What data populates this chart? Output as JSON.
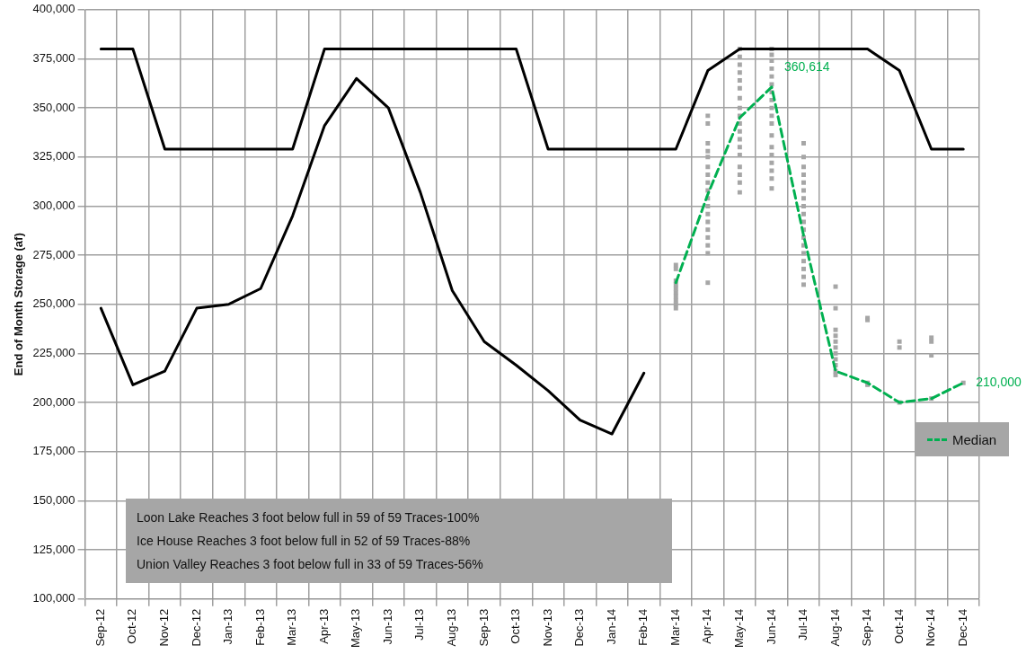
{
  "chart_data": {
    "type": "line",
    "ylabel": "End of Month Storage (af)",
    "categories": [
      "Sep-12",
      "Oct-12",
      "Nov-12",
      "Dec-12",
      "Jan-13",
      "Feb-13",
      "Mar-13",
      "Apr-13",
      "May-13",
      "Jun-13",
      "Jul-13",
      "Aug-13",
      "Sep-13",
      "Oct-13",
      "Nov-13",
      "Dec-13",
      "Jan-14",
      "Feb-14",
      "Mar-14",
      "Apr-14",
      "May-14",
      "Jun-14",
      "Jul-14",
      "Aug-14",
      "Sep-14",
      "Oct-14",
      "Nov-14",
      "Dec-14"
    ],
    "series": [
      {
        "color": "#000000",
        "values": [
          380000,
          380000,
          329000,
          329000,
          329000,
          329000,
          329000,
          380000,
          380000,
          380000,
          380000,
          380000,
          380000,
          380000,
          329000,
          329000,
          329000,
          329000,
          329000,
          369000,
          380000,
          380000,
          380000,
          380000,
          380000,
          369000,
          329000,
          329000
        ]
      },
      {
        "color": "#000000",
        "values": [
          248000,
          209000,
          216000,
          248000,
          250000,
          258000,
          295000,
          341000,
          365000,
          350000,
          307000,
          257000,
          231000,
          219000,
          206000,
          191000,
          184000,
          215000,
          null,
          null,
          null,
          null,
          null,
          null,
          null,
          null,
          null,
          null
        ]
      },
      {
        "type": "scatter",
        "color": "#a6a6a6",
        "x": [
          "Mar-14",
          "Mar-14",
          "Mar-14",
          "Mar-14",
          "Mar-14",
          "Mar-14",
          "Mar-14",
          "Mar-14",
          "Mar-14",
          "Mar-14",
          "Apr-14",
          "Apr-14",
          "Apr-14",
          "Apr-14",
          "Apr-14",
          "Apr-14",
          "Apr-14",
          "Apr-14",
          "Apr-14",
          "Apr-14",
          "Apr-14",
          "Apr-14",
          "Apr-14",
          "Apr-14",
          "Apr-14",
          "Apr-14",
          "Apr-14",
          "Apr-14",
          "May-14",
          "May-14",
          "May-14",
          "May-14",
          "May-14",
          "May-14",
          "May-14",
          "May-14",
          "May-14",
          "May-14",
          "May-14",
          "May-14",
          "May-14",
          "May-14",
          "May-14",
          "May-14",
          "May-14",
          "May-14",
          "Jun-14",
          "Jun-14",
          "Jun-14",
          "Jun-14",
          "Jun-14",
          "Jun-14",
          "Jun-14",
          "Jun-14",
          "Jun-14",
          "Jun-14",
          "Jun-14",
          "Jun-14",
          "Jun-14",
          "Jun-14",
          "Jun-14",
          "Jun-14",
          "Jun-14",
          "Jun-14",
          "Jul-14",
          "Jul-14",
          "Jul-14",
          "Jul-14",
          "Jul-14",
          "Jul-14",
          "Jul-14",
          "Jul-14",
          "Jul-14",
          "Jul-14",
          "Jul-14",
          "Jul-14",
          "Jul-14",
          "Jul-14",
          "Jul-14",
          "Jul-14",
          "Jul-14",
          "Jul-14",
          "Aug-14",
          "Aug-14",
          "Aug-14",
          "Aug-14",
          "Aug-14",
          "Aug-14",
          "Aug-14",
          "Aug-14",
          "Aug-14",
          "Aug-14",
          "Aug-14",
          "Sep-14",
          "Sep-14",
          "Sep-14",
          "Sep-14",
          "Oct-14",
          "Oct-14",
          "Oct-14",
          "Nov-14",
          "Nov-14",
          "Nov-14",
          "Nov-14",
          "Dec-14"
        ],
        "values": [
          270000,
          268000,
          262000,
          260000,
          258000,
          256000,
          254000,
          252000,
          250000,
          248000,
          346000,
          342000,
          332000,
          328000,
          325000,
          320000,
          316000,
          312000,
          308000,
          304000,
          300000,
          296000,
          292000,
          288000,
          284000,
          280000,
          276000,
          261000,
          380000,
          376000,
          372000,
          368000,
          364000,
          360000,
          355000,
          350000,
          346000,
          342000,
          338000,
          334000,
          330000,
          326000,
          320000,
          316000,
          312000,
          307000,
          380000,
          377000,
          374000,
          370000,
          366000,
          362000,
          358000,
          354000,
          350000,
          346000,
          342000,
          336000,
          330000,
          326000,
          322000,
          318000,
          314000,
          309000,
          332000,
          325000,
          320000,
          316000,
          312000,
          308000,
          304000,
          300000,
          296000,
          292000,
          288000,
          284000,
          280000,
          276000,
          272000,
          268000,
          264000,
          260000,
          259000,
          248000,
          237000,
          234000,
          231000,
          228000,
          225000,
          222000,
          219000,
          216000,
          214000,
          243000,
          242000,
          210000,
          209000,
          231000,
          228000,
          200000,
          233000,
          231000,
          224000,
          202000,
          210000
        ]
      },
      {
        "name": "Median",
        "color": "#00b050",
        "line_style": "dashed",
        "values": [
          null,
          null,
          null,
          null,
          null,
          null,
          null,
          null,
          null,
          null,
          null,
          null,
          null,
          null,
          null,
          null,
          null,
          null,
          261000,
          306000,
          345000,
          360614,
          285000,
          216000,
          210000,
          200000,
          202000,
          210000
        ],
        "value_labels": [
          null,
          null,
          null,
          null,
          null,
          null,
          null,
          null,
          null,
          null,
          null,
          null,
          null,
          null,
          null,
          null,
          null,
          null,
          null,
          null,
          null,
          "360,614",
          null,
          null,
          null,
          null,
          null,
          "210,000"
        ]
      }
    ],
    "ylim": [
      100000,
      400000
    ],
    "yticks": [
      {
        "value": 100000,
        "label": "100,000"
      },
      {
        "value": 125000,
        "label": "125,000"
      },
      {
        "value": 150000,
        "label": "150,000"
      },
      {
        "value": 175000,
        "label": "175,000"
      },
      {
        "value": 200000,
        "label": "200,000"
      },
      {
        "value": 225000,
        "label": "225,000"
      },
      {
        "value": 250000,
        "label": "250,000"
      },
      {
        "value": 275000,
        "label": "275,000"
      },
      {
        "value": 300000,
        "label": "300,000"
      },
      {
        "value": 325000,
        "label": "325,000"
      },
      {
        "value": 350000,
        "label": "350,000"
      },
      {
        "value": 375000,
        "label": "375,000"
      },
      {
        "value": 400000,
        "label": "400,000"
      }
    ],
    "grid": true,
    "legend": "right",
    "annotations": [
      "Loon Lake Reaches 3 foot below full in 59 of 59 Traces-100%",
      "Ice House Reaches 3 foot below full in 52 of 59 Traces-88%",
      "Union Valley Reaches 3 foot below full in 33 of 59 Traces-56%"
    ]
  }
}
